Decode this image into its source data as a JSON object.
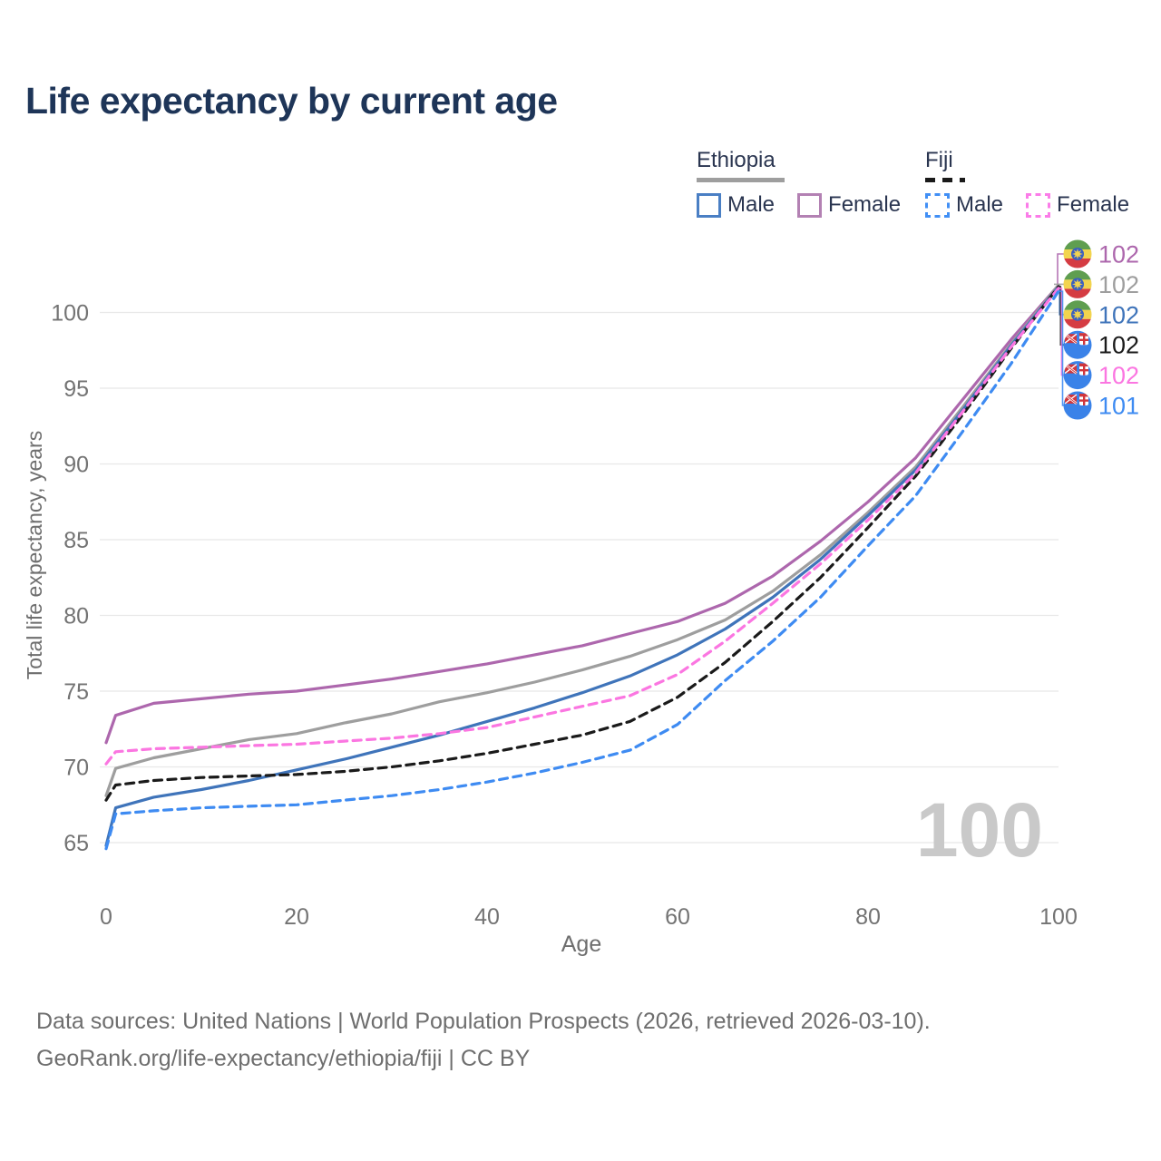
{
  "chart_data": {
    "type": "line",
    "title": "Life expectancy by current age",
    "xlabel": "Age",
    "ylabel": "Total life expectancy, years",
    "x_range": [
      0,
      100
    ],
    "y_gridline_range": [
      65,
      100
    ],
    "x_ticks": [
      0,
      20,
      40,
      60,
      80,
      100
    ],
    "y_ticks": [
      65,
      70,
      75,
      80,
      85,
      90,
      95,
      100
    ],
    "grid": "horizontal gridlines only, light gray",
    "legend_position": "top-right",
    "x": [
      0,
      1,
      5,
      10,
      15,
      20,
      25,
      30,
      35,
      40,
      45,
      50,
      55,
      60,
      65,
      70,
      75,
      80,
      85,
      90,
      95,
      100
    ],
    "series": [
      {
        "id": "ethiopia-female",
        "country": "Ethiopia",
        "sex": "Female",
        "color": "#ad67ad",
        "dashed": false,
        "end_value_label": "102",
        "flag": "ethiopia",
        "values": [
          71.6,
          73.4,
          74.2,
          74.5,
          74.8,
          75.0,
          75.4,
          75.8,
          76.3,
          76.8,
          77.4,
          78.0,
          78.8,
          79.6,
          80.8,
          82.6,
          84.9,
          87.5,
          90.4,
          94.3,
          98.2,
          101.8
        ]
      },
      {
        "id": "ethiopia-total",
        "country": "Ethiopia",
        "sex": "Both sexes",
        "color": "#9e9e9e",
        "dashed": false,
        "end_value_label": "102",
        "flag": "ethiopia",
        "values": [
          68.1,
          69.9,
          70.6,
          71.2,
          71.8,
          72.2,
          72.9,
          73.5,
          74.3,
          74.9,
          75.6,
          76.4,
          77.3,
          78.4,
          79.7,
          81.6,
          84.0,
          86.8,
          89.8,
          93.8,
          97.9,
          101.8
        ]
      },
      {
        "id": "ethiopia-male",
        "country": "Ethiopia",
        "sex": "Male",
        "color": "#3f74ba",
        "dashed": false,
        "end_value_label": "102",
        "flag": "ethiopia",
        "values": [
          64.8,
          67.3,
          68.0,
          68.5,
          69.1,
          69.8,
          70.5,
          71.3,
          72.1,
          73.0,
          73.9,
          74.9,
          76.0,
          77.4,
          79.1,
          81.2,
          83.7,
          86.6,
          89.6,
          93.6,
          97.8,
          101.7
        ]
      },
      {
        "id": "fiji-total",
        "country": "Fiji",
        "sex": "Both sexes",
        "color": "#1a1a1a",
        "dashed": true,
        "end_value_label": "102",
        "flag": "fiji",
        "values": [
          67.8,
          68.8,
          69.1,
          69.3,
          69.4,
          69.5,
          69.7,
          70.0,
          70.4,
          70.9,
          71.5,
          72.1,
          73.0,
          74.6,
          76.9,
          79.6,
          82.5,
          85.8,
          89.2,
          93.3,
          97.6,
          101.7
        ]
      },
      {
        "id": "fiji-female",
        "country": "Fiji",
        "sex": "Female",
        "color": "#fb76e1",
        "dashed": true,
        "end_value_label": "102",
        "flag": "fiji",
        "values": [
          70.2,
          71.0,
          71.2,
          71.3,
          71.4,
          71.5,
          71.7,
          71.9,
          72.2,
          72.6,
          73.3,
          74.0,
          74.7,
          76.1,
          78.3,
          80.8,
          83.4,
          86.3,
          89.4,
          93.5,
          97.7,
          101.6
        ]
      },
      {
        "id": "fiji-male",
        "country": "Fiji",
        "sex": "Male",
        "color": "#3e8bf2",
        "dashed": true,
        "end_value_label": "101",
        "flag": "fiji",
        "values": [
          64.6,
          66.9,
          67.1,
          67.3,
          67.4,
          67.5,
          67.8,
          68.1,
          68.5,
          69.0,
          69.6,
          70.3,
          71.1,
          72.8,
          75.7,
          78.3,
          81.2,
          84.6,
          87.9,
          92.2,
          96.6,
          101.4
        ]
      }
    ]
  },
  "legend": {
    "groups": [
      {
        "label": "Ethiopia",
        "underline_color": "#9e9e9e",
        "underline_dashed": false,
        "items": [
          {
            "label": "Male",
            "color": "#4a7fc4",
            "dashed": false
          },
          {
            "label": "Female",
            "color": "#b381b3",
            "dashed": false
          }
        ]
      },
      {
        "label": "Fiji",
        "underline_color": "#1a1a1a",
        "underline_dashed": true,
        "items": [
          {
            "label": "Male",
            "color": "#418ff5",
            "dashed": true
          },
          {
            "label": "Female",
            "color": "#fb7ce8",
            "dashed": true
          }
        ]
      }
    ]
  },
  "watermark": {
    "text": "100",
    "color": "#c9c9c9"
  },
  "footer": {
    "line1": "Data sources: United Nations | World Population Prospects (2026, retrieved 2026-03-10).",
    "line2": "GeoRank.org/life-expectancy/ethiopia/fiji | CC BY"
  },
  "icons": {
    "ethiopia_flag": {
      "green": "#5f9e50",
      "yellow": "#f2d44e",
      "red": "#d53c43",
      "blue": "#3b5fc0",
      "star": "#f2d44e"
    },
    "fiji_flag": {
      "base": "#3a82e8",
      "jack_red": "#d0363c",
      "white": "#ffffff"
    }
  },
  "axis_style": {
    "tick_color": "#737373",
    "grid_color": "#e8e8e8",
    "label_color": "#6e6e6e"
  }
}
